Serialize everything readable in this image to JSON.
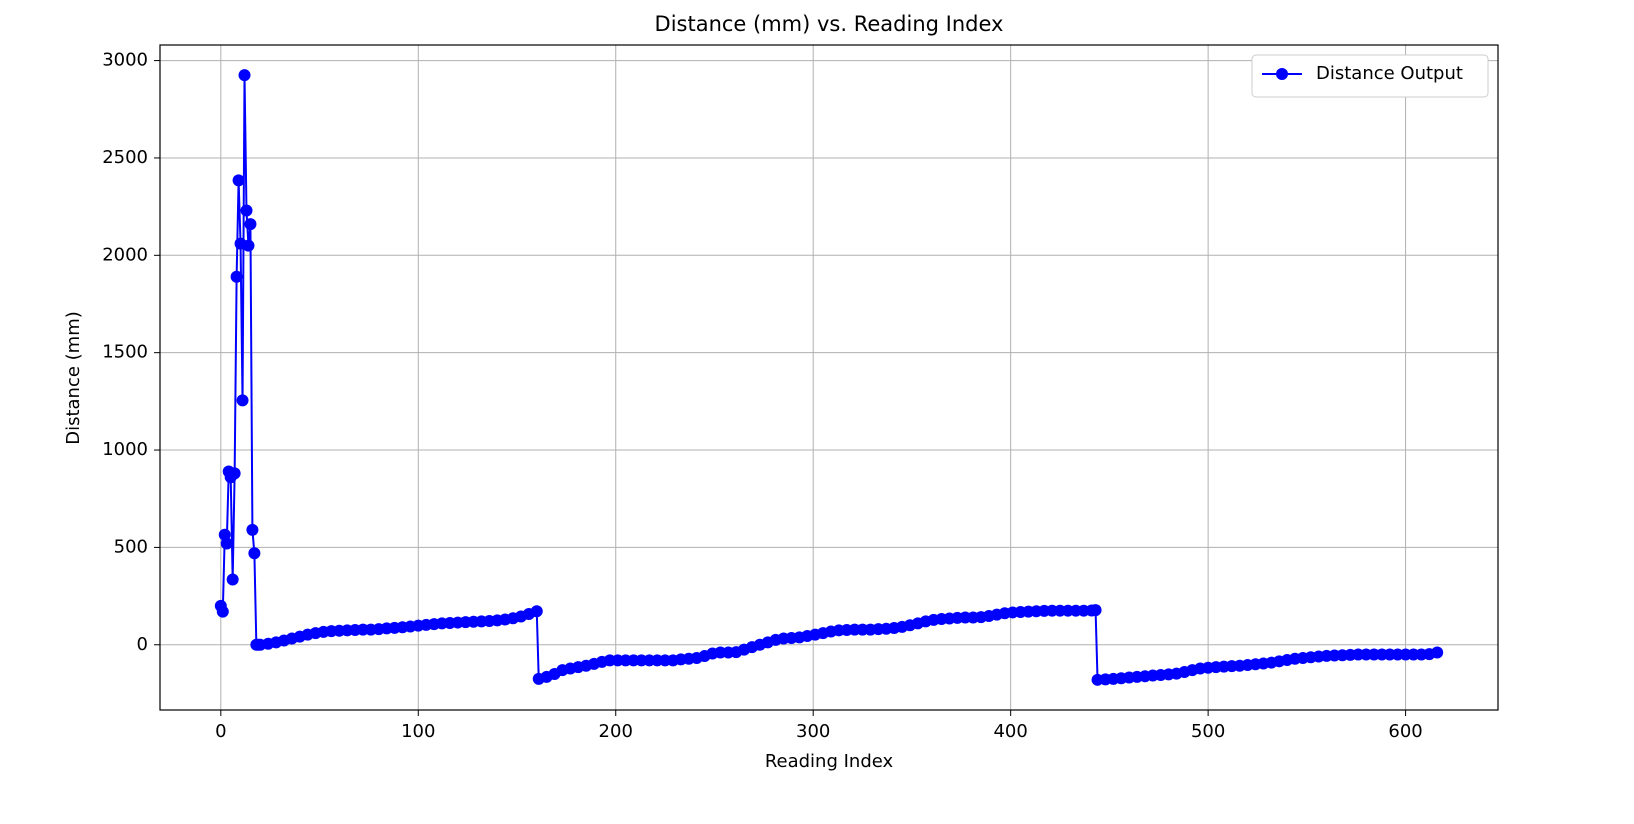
{
  "chart_data": {
    "type": "line",
    "title": "Distance (mm) vs. Reading Index",
    "x_label": "Reading Index",
    "y_label": "Distance (mm)",
    "x": [
      0,
      1,
      2,
      3,
      4,
      5,
      6,
      7,
      8,
      9,
      10,
      11,
      12,
      13,
      14,
      15,
      16,
      17,
      18,
      19,
      20,
      24,
      28,
      32,
      36,
      40,
      44,
      48,
      52,
      56,
      60,
      64,
      68,
      72,
      76,
      80,
      84,
      88,
      92,
      96,
      100,
      104,
      108,
      112,
      116,
      120,
      124,
      128,
      132,
      136,
      140,
      144,
      148,
      152,
      156,
      160,
      161,
      165,
      169,
      173,
      177,
      181,
      185,
      189,
      193,
      197,
      201,
      205,
      209,
      213,
      217,
      221,
      225,
      229,
      233,
      237,
      241,
      245,
      249,
      253,
      257,
      261,
      265,
      269,
      273,
      277,
      281,
      285,
      289,
      293,
      297,
      301,
      305,
      309,
      313,
      317,
      321,
      325,
      329,
      333,
      337,
      341,
      345,
      349,
      353,
      357,
      361,
      365,
      369,
      373,
      377,
      381,
      385,
      389,
      393,
      397,
      401,
      405,
      409,
      413,
      417,
      421,
      425,
      429,
      433,
      437,
      441,
      443,
      444,
      448,
      452,
      456,
      460,
      464,
      468,
      472,
      476,
      480,
      484,
      488,
      492,
      496,
      500,
      504,
      508,
      512,
      516,
      520,
      524,
      528,
      532,
      536,
      540,
      544,
      548,
      552,
      556,
      560,
      564,
      568,
      572,
      576,
      580,
      584,
      588,
      592,
      596,
      600,
      604,
      608,
      612,
      616
    ],
    "series": [
      {
        "name": "Distance Output",
        "color": "#0000ff",
        "values": [
          200,
          170,
          565,
          520,
          890,
          860,
          335,
          880,
          1890,
          2385,
          2060,
          1255,
          2925,
          2230,
          2050,
          2160,
          590,
          470,
          0,
          0,
          0,
          5,
          12,
          22,
          32,
          42,
          52,
          60,
          66,
          70,
          72,
          74,
          76,
          78,
          78,
          80,
          84,
          87,
          90,
          94,
          98,
          102,
          106,
          110,
          112,
          114,
          116,
          118,
          120,
          122,
          125,
          130,
          136,
          145,
          158,
          172,
          -175,
          -165,
          -150,
          -130,
          -122,
          -115,
          -108,
          -98,
          -88,
          -80,
          -80,
          -80,
          -80,
          -80,
          -80,
          -80,
          -80,
          -80,
          -75,
          -72,
          -68,
          -58,
          -45,
          -40,
          -40,
          -38,
          -25,
          -12,
          0,
          12,
          25,
          32,
          35,
          38,
          45,
          52,
          60,
          68,
          74,
          76,
          78,
          78,
          78,
          80,
          82,
          86,
          92,
          100,
          110,
          120,
          128,
          132,
          135,
          138,
          140,
          140,
          142,
          148,
          155,
          162,
          166,
          168,
          170,
          172,
          174,
          175,
          175,
          175,
          175,
          175,
          176,
          178,
          -180,
          -178,
          -175,
          -172,
          -168,
          -165,
          -162,
          -158,
          -155,
          -152,
          -148,
          -140,
          -130,
          -122,
          -118,
          -115,
          -112,
          -110,
          -108,
          -104,
          -100,
          -96,
          -92,
          -85,
          -78,
          -72,
          -68,
          -64,
          -60,
          -57,
          -55,
          -54,
          -52,
          -50,
          -50,
          -50,
          -50,
          -50,
          -50,
          -50,
          -50,
          -50,
          -48,
          -40
        ]
      }
    ],
    "xlim": [
      -30.8,
      646.8
    ],
    "ylim": [
      -335,
      3080
    ],
    "xticks": [
      0,
      100,
      200,
      300,
      400,
      500,
      600
    ],
    "yticks": [
      0,
      500,
      1000,
      1500,
      2000,
      2500,
      3000
    ],
    "grid": true,
    "legend": "upper right"
  }
}
